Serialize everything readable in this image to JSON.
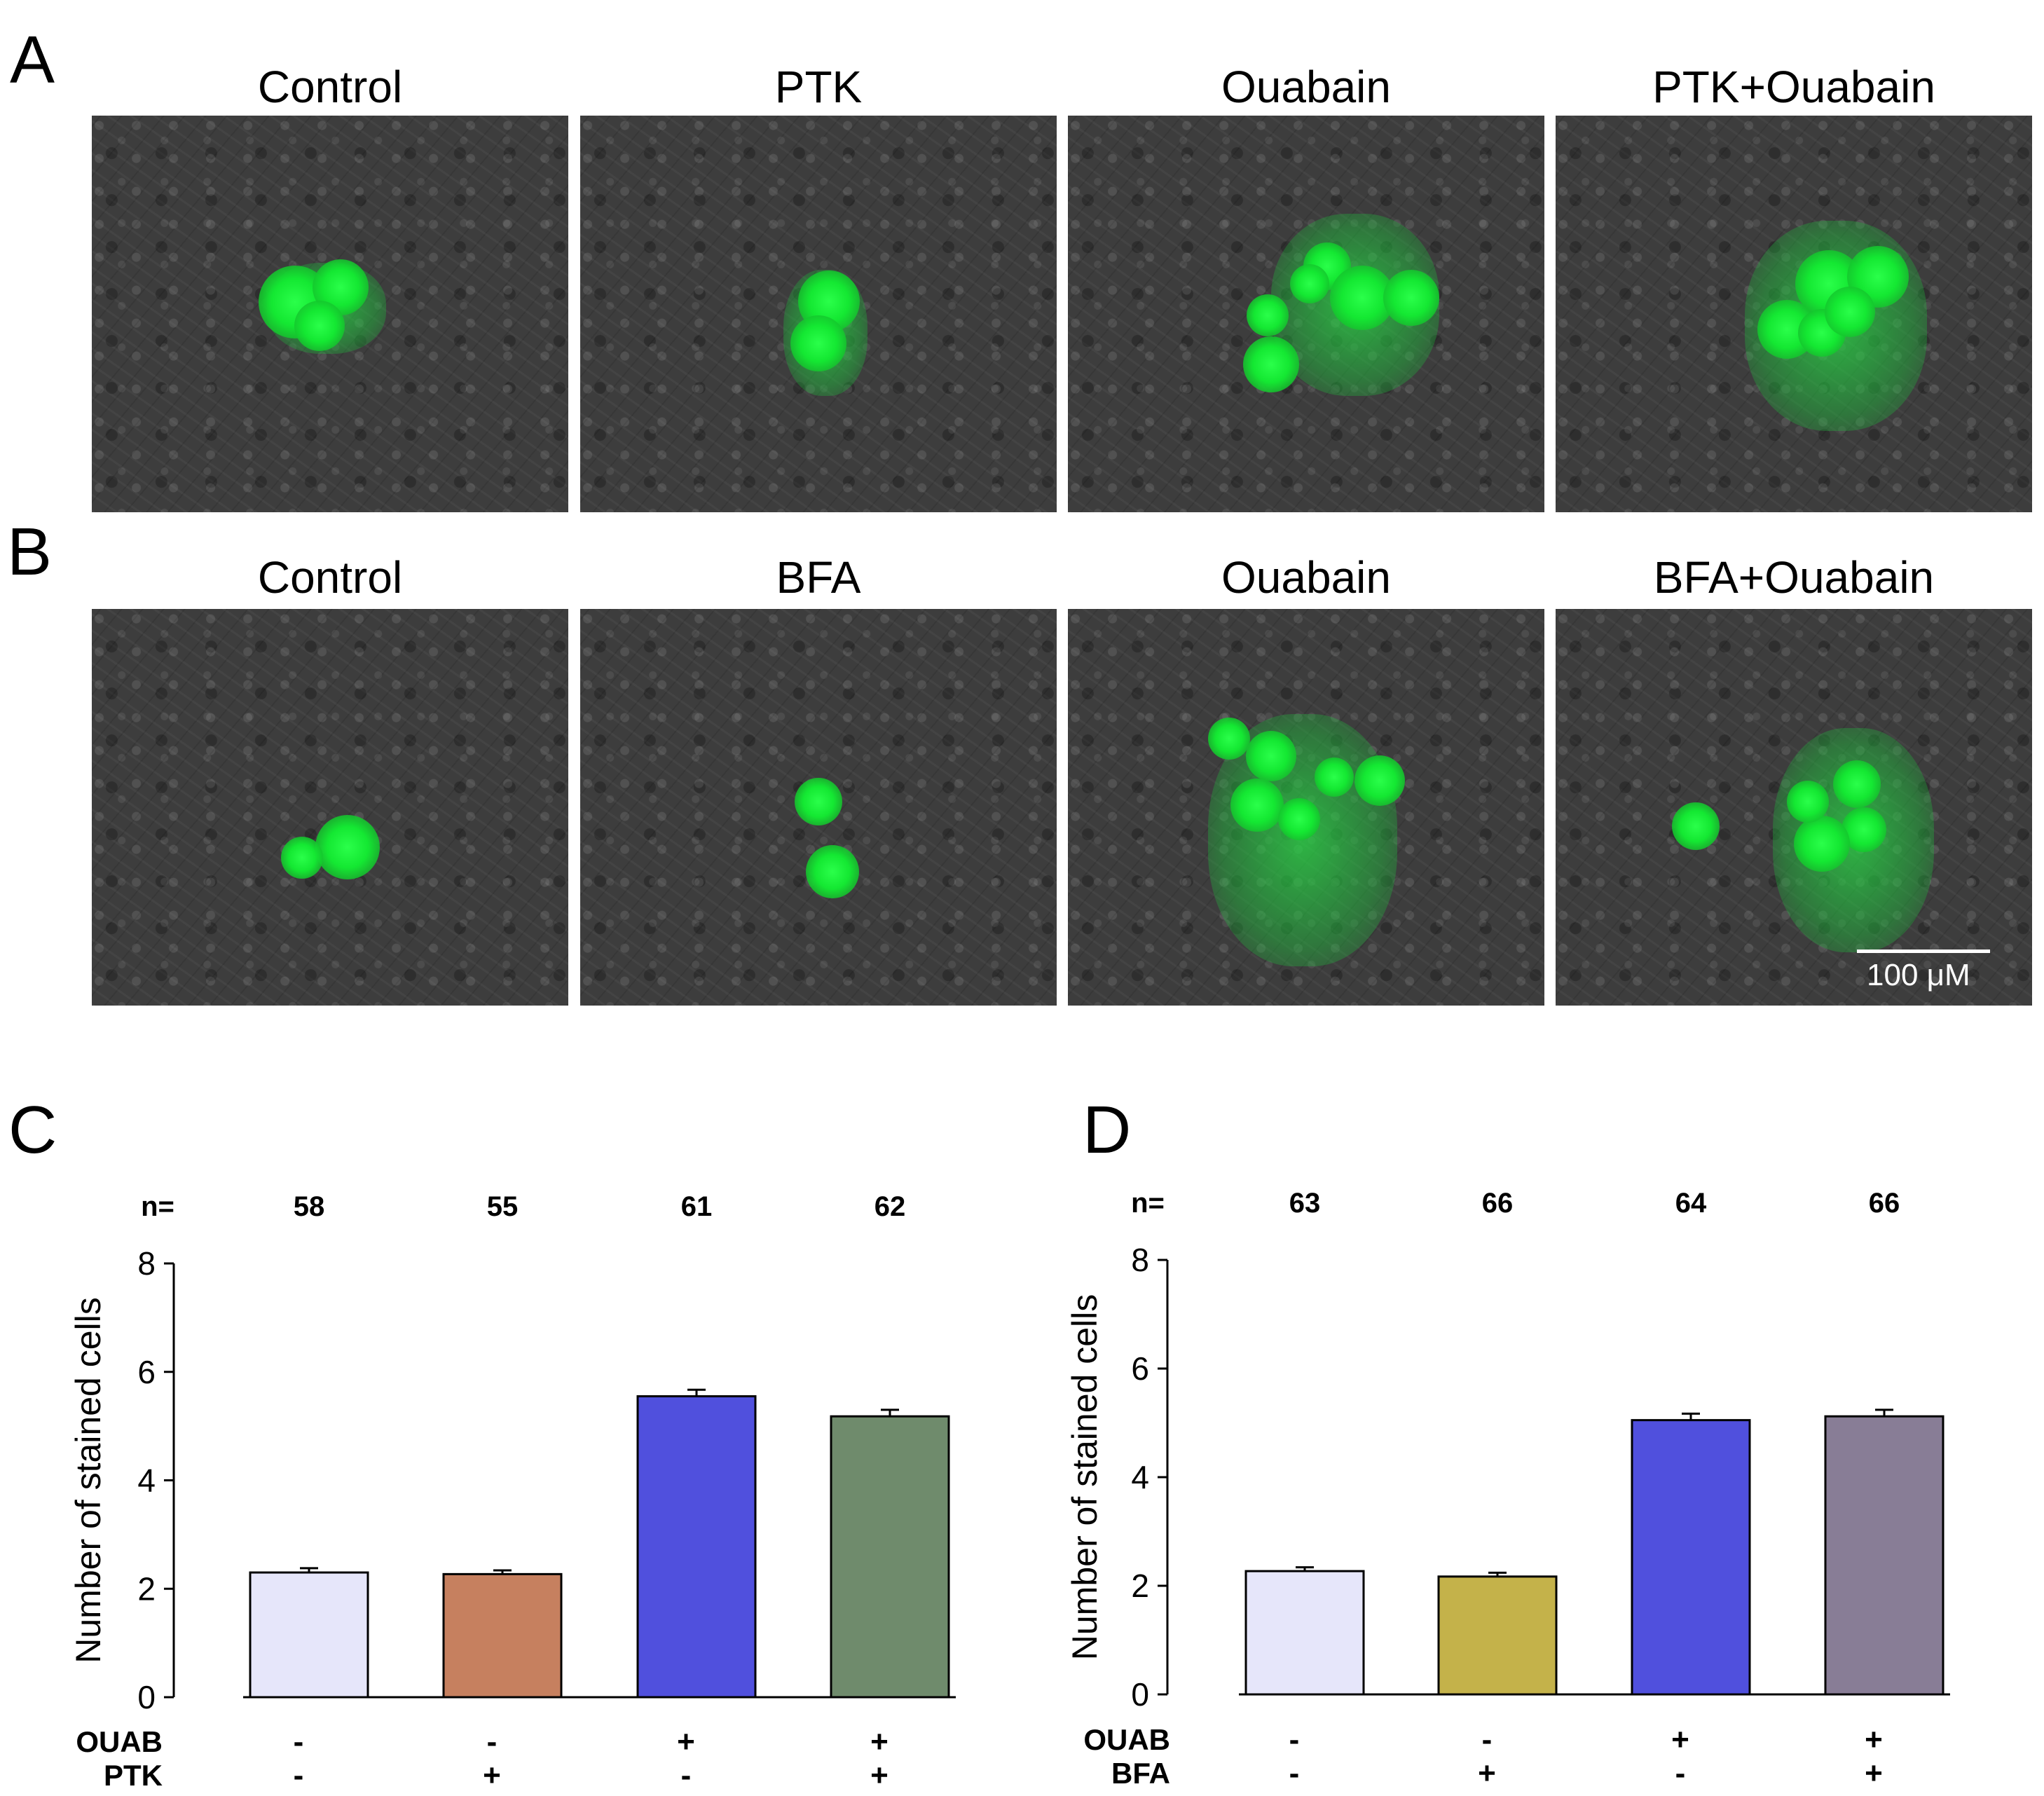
{
  "figure": {
    "panel_a": {
      "letter": "A",
      "images": [
        {
          "title": "Control",
          "stained_cells": 3
        },
        {
          "title": "PTK",
          "stained_cells": 2
        },
        {
          "title": "Ouabain",
          "stained_cells": 6
        },
        {
          "title": "PTK+Ouabain",
          "stained_cells": 5
        }
      ]
    },
    "panel_b": {
      "letter": "B",
      "images": [
        {
          "title": "Control",
          "stained_cells": 2
        },
        {
          "title": "BFA",
          "stained_cells": 2
        },
        {
          "title": "Ouabain",
          "stained_cells": 6
        },
        {
          "title": "BFA+Ouabain",
          "stained_cells": 5
        }
      ],
      "scale_bar_label": "100 μM"
    }
  },
  "chart_data": [
    {
      "panel": "C",
      "type": "bar",
      "ylabel": "Number of stained cells",
      "ylim": [
        0,
        8
      ],
      "yticks": [
        "0",
        "2",
        "4",
        "6",
        "8"
      ],
      "n_label": "n=",
      "n_values": [
        "58",
        "55",
        "61",
        "62"
      ],
      "values": [
        2.3,
        2.27,
        5.55,
        5.18
      ],
      "errors": [
        0.08,
        0.07,
        0.12,
        0.12
      ],
      "colors": [
        "#e6e6fa",
        "#c6805f",
        "#5050dd",
        "#6f8b6c"
      ],
      "conditions": [
        {
          "label": "OUAB",
          "marks": [
            "-",
            "-",
            "+",
            "+"
          ]
        },
        {
          "label": "PTK",
          "marks": [
            "-",
            "+",
            "-",
            "+"
          ]
        }
      ]
    },
    {
      "panel": "D",
      "type": "bar",
      "ylabel": "Number of stained cells",
      "ylim": [
        0,
        8
      ],
      "yticks": [
        "0",
        "2",
        "4",
        "6",
        "8"
      ],
      "n_label": "n=",
      "n_values": [
        "63",
        "66",
        "64",
        "66"
      ],
      "values": [
        2.27,
        2.17,
        5.05,
        5.12
      ],
      "errors": [
        0.07,
        0.07,
        0.12,
        0.12
      ],
      "colors": [
        "#e6e6fa",
        "#c4b24a",
        "#5050dd",
        "#887d96"
      ],
      "conditions": [
        {
          "label": "OUAB",
          "marks": [
            "-",
            "-",
            "+",
            "+"
          ]
        },
        {
          "label": "BFA",
          "marks": [
            "-",
            "+",
            "-",
            "+"
          ]
        }
      ]
    }
  ]
}
